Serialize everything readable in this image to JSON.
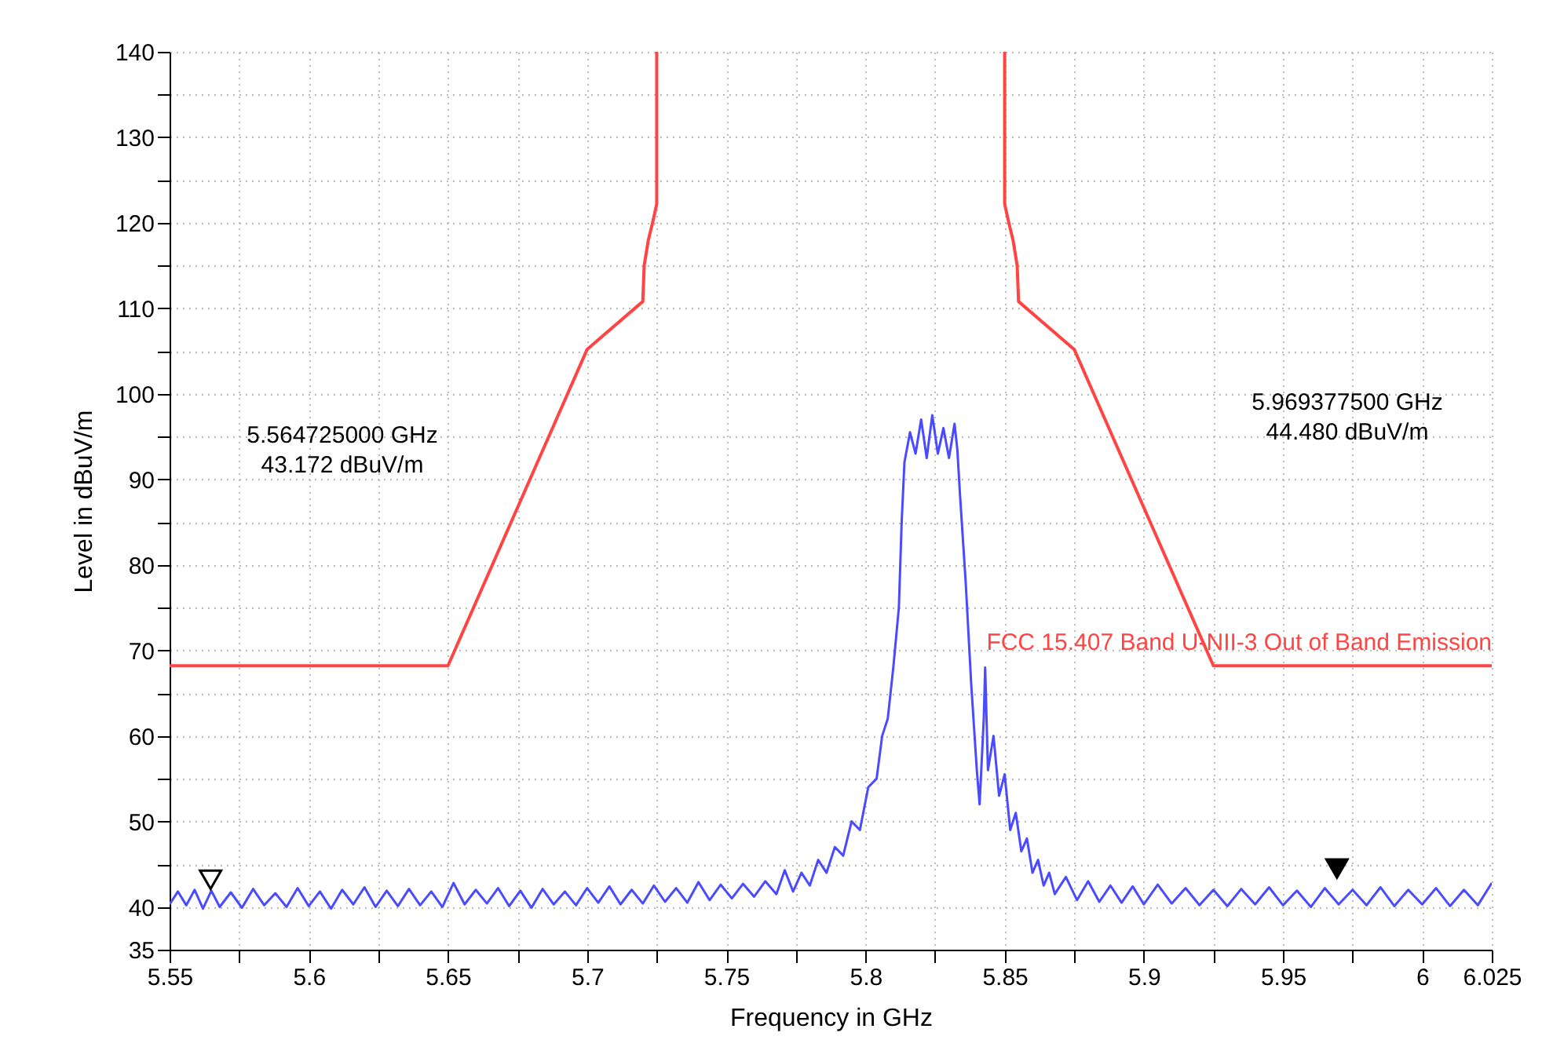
{
  "chart_data": {
    "type": "line",
    "xlabel": "Frequency in GHz",
    "ylabel": "Level in dBuV/m",
    "xlim": [
      5.55,
      6.025
    ],
    "ylim": [
      35,
      140
    ],
    "xticks": [
      5.55,
      {
        "value": 5.575,
        "label": null
      },
      5.6,
      {
        "value": 5.625,
        "label": null
      },
      5.65,
      {
        "value": 5.675,
        "label": null
      },
      5.7,
      {
        "value": 5.725,
        "label": null
      },
      5.75,
      {
        "value": 5.775,
        "label": null
      },
      5.8,
      {
        "value": 5.825,
        "label": null
      },
      5.85,
      {
        "value": 5.875,
        "label": null
      },
      5.9,
      {
        "value": 5.925,
        "label": null
      },
      5.95,
      {
        "value": 5.975,
        "label": null
      },
      6,
      6.025
    ],
    "yticks": [
      35,
      40,
      {
        "value": 45,
        "label": null
      },
      50,
      {
        "value": 55,
        "label": null
      },
      60,
      {
        "value": 65,
        "label": null
      },
      70,
      {
        "value": 75,
        "label": null
      },
      80,
      {
        "value": 85,
        "label": null
      },
      90,
      {
        "value": 95,
        "label": null
      },
      100,
      {
        "value": 105,
        "label": null
      },
      110,
      {
        "value": 115,
        "label": null
      },
      120,
      {
        "value": 125,
        "label": null
      },
      130,
      {
        "value": 135,
        "label": null
      },
      140
    ],
    "grid": true,
    "line_style": "solid",
    "series": [
      {
        "color": "#4a4aff",
        "x": [
          5.55,
          5.553,
          5.556,
          5.559,
          5.562,
          5.565,
          5.568,
          5.572,
          5.576,
          5.58,
          5.584,
          5.588,
          5.592,
          5.596,
          5.6,
          5.604,
          5.608,
          5.612,
          5.616,
          5.62,
          5.624,
          5.628,
          5.632,
          5.636,
          5.64,
          5.644,
          5.648,
          5.652,
          5.656,
          5.66,
          5.664,
          5.668,
          5.672,
          5.676,
          5.68,
          5.684,
          5.688,
          5.692,
          5.696,
          5.7,
          5.704,
          5.708,
          5.712,
          5.716,
          5.72,
          5.724,
          5.728,
          5.732,
          5.736,
          5.74,
          5.744,
          5.748,
          5.752,
          5.756,
          5.76,
          5.764,
          5.768,
          5.771,
          5.774,
          5.777,
          5.78,
          5.783,
          5.786,
          5.789,
          5.792,
          5.795,
          5.798,
          5.801,
          5.804,
          5.806,
          5.808,
          5.81,
          5.812,
          5.813,
          5.814,
          5.816,
          5.818,
          5.82,
          5.822,
          5.824,
          5.826,
          5.828,
          5.83,
          5.832,
          5.833,
          5.834,
          5.836,
          5.838,
          5.84,
          5.841,
          5.8425,
          5.843,
          5.844,
          5.846,
          5.848,
          5.85,
          5.852,
          5.854,
          5.856,
          5.858,
          5.86,
          5.862,
          5.864,
          5.866,
          5.868,
          5.872,
          5.876,
          5.88,
          5.884,
          5.888,
          5.892,
          5.896,
          5.9,
          5.905,
          5.91,
          5.915,
          5.92,
          5.925,
          5.93,
          5.935,
          5.94,
          5.945,
          5.95,
          5.955,
          5.96,
          5.965,
          5.97,
          5.975,
          5.98,
          5.985,
          5.99,
          5.995,
          6,
          6.005,
          6.01,
          6.015,
          6.02,
          6.025
        ],
        "values": [
          40.3,
          41.8,
          40.2,
          42.0,
          39.8,
          41.9,
          40.0,
          41.7,
          39.9,
          42.1,
          40.2,
          41.6,
          40.0,
          42.2,
          40.1,
          41.8,
          39.8,
          42.0,
          40.3,
          42.3,
          40.0,
          41.9,
          40.1,
          42.1,
          40.2,
          41.8,
          40.0,
          42.8,
          40.3,
          42.0,
          40.4,
          42.2,
          40.1,
          41.9,
          39.9,
          42.1,
          40.3,
          41.8,
          40.2,
          42.2,
          40.5,
          42.4,
          40.3,
          42.0,
          40.4,
          42.5,
          40.6,
          42.2,
          40.5,
          42.9,
          40.8,
          42.6,
          41.0,
          42.7,
          41.2,
          43.0,
          41.5,
          44.3,
          41.8,
          44.0,
          42.5,
          45.5,
          44.0,
          47.0,
          46.0,
          50.0,
          49.0,
          54.0,
          55.0,
          60.0,
          62.0,
          68.0,
          75.0,
          85.0,
          92.0,
          95.5,
          93.0,
          97.0,
          92.5,
          97.5,
          93.0,
          96.0,
          92.5,
          96.5,
          93.5,
          88.0,
          78.0,
          66.0,
          56.0,
          52.0,
          62.0,
          68.0,
          56.0,
          60.0,
          53.0,
          55.5,
          49.0,
          51.0,
          46.5,
          48.0,
          44.0,
          45.5,
          42.5,
          44.0,
          41.5,
          43.5,
          40.8,
          43.0,
          40.6,
          42.5,
          40.5,
          42.4,
          40.3,
          42.6,
          40.4,
          42.2,
          40.2,
          42.0,
          40.1,
          42.1,
          40.3,
          42.3,
          40.2,
          41.9,
          40.0,
          42.2,
          40.3,
          42.0,
          40.2,
          42.3,
          40.1,
          42.0,
          40.3,
          42.2,
          40.1,
          42.0,
          40.2,
          42.8
        ]
      },
      {
        "name": "FCC 15.407 Band U-NII-3 Out of Band Emission",
        "color": "#ff4444",
        "x": [
          5.55,
          5.65,
          5.7,
          5.72,
          5.7205,
          5.722,
          5.7235,
          5.725,
          5.725,
          5.7875,
          5.85,
          5.85,
          5.8515,
          5.853,
          5.8545,
          5.855,
          5.875,
          5.925,
          6.025
        ],
        "values": [
          68.2,
          68.2,
          105.2,
          110.8,
          115,
          118,
          120,
          122.2,
          140,
          null,
          140,
          122.2,
          120,
          118,
          115,
          110.8,
          105.2,
          68.2,
          68.2
        ]
      },
      {
        "type": "scatter",
        "marker": "triangle",
        "color": "#ffffff",
        "x": [
          5.564725
        ],
        "values": [
          43.172
        ]
      },
      {
        "type": "scatter",
        "marker": "triangle",
        "color": "#000000",
        "x": [
          5.9693775
        ],
        "values": [
          44.48
        ]
      }
    ],
    "annotations": [
      "5.564725000 GHz\n43.172 dBuV/m",
      "5.969377500 GHz\n44.480 dBuV/m"
    ]
  }
}
